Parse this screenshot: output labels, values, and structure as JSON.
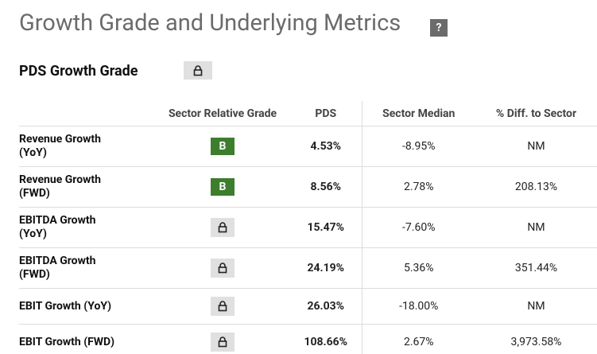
{
  "header": {
    "title": "Growth Grade and Underlying Metrics",
    "help": "?"
  },
  "section": {
    "title": "PDS Growth Grade"
  },
  "table": {
    "columns": [
      "Sector Relative Grade",
      "PDS",
      "Sector Median",
      "% Diff. to Sector"
    ],
    "rows": [
      {
        "label": "Revenue Growth (YoY)",
        "grade": "B",
        "pds": "4.53%",
        "median": "-8.95%",
        "diff": "NM"
      },
      {
        "label": "Revenue Growth (FWD)",
        "grade": "B",
        "pds": "8.56%",
        "median": "2.78%",
        "diff": "208.13%"
      },
      {
        "label": "EBITDA Growth (YoY)",
        "pds": "15.47%",
        "median": "-7.60%",
        "diff": "NM"
      },
      {
        "label": "EBITDA Growth (FWD)",
        "pds": "24.19%",
        "median": "5.36%",
        "diff": "351.44%"
      },
      {
        "label": "EBIT Growth (YoY)",
        "pds": "26.03%",
        "median": "-18.00%",
        "diff": "NM"
      },
      {
        "label": "EBIT Growth (FWD)",
        "pds": "108.66%",
        "median": "2.67%",
        "diff": "3,973.58%"
      }
    ]
  }
}
